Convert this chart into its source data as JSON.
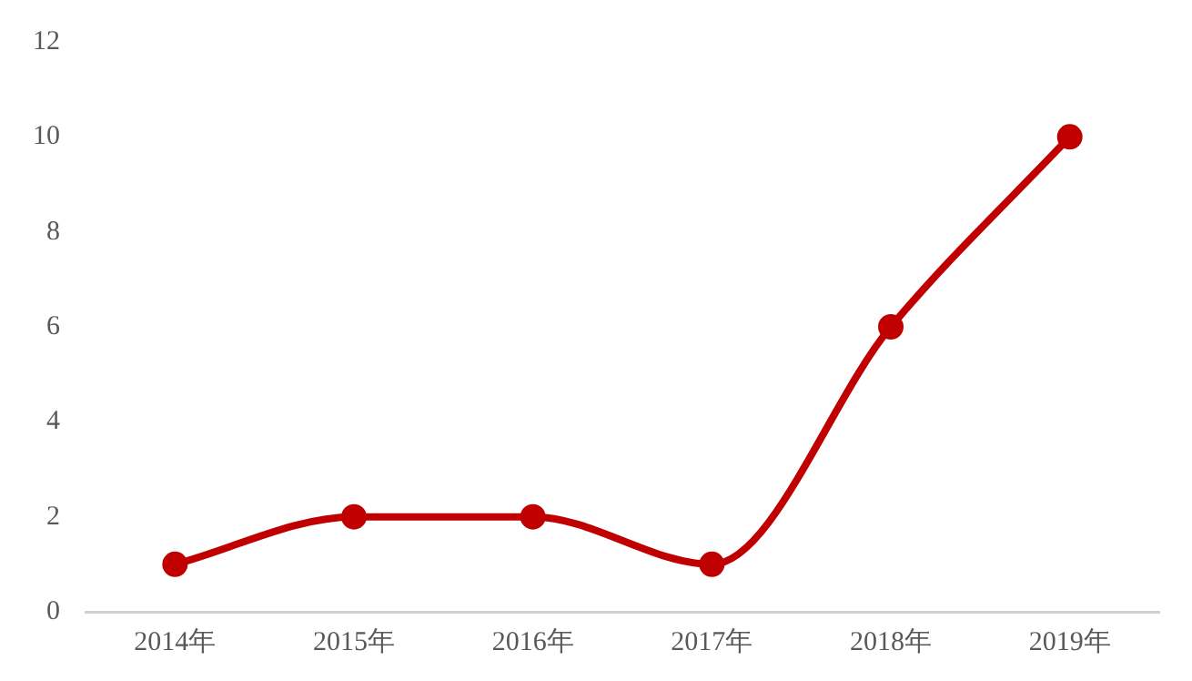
{
  "chart_data": {
    "type": "line",
    "categories": [
      "2014年",
      "2015年",
      "2016年",
      "2017年",
      "2018年",
      "2019年"
    ],
    "series": [
      {
        "color": "#c00000",
        "values": [
          1,
          2,
          2,
          1,
          6,
          10
        ]
      }
    ],
    "ylim": [
      0,
      12
    ],
    "yticks": [
      0,
      2,
      4,
      6,
      8,
      10,
      12
    ],
    "grid": false,
    "legend": false,
    "marker": "circle",
    "line_style": "solid"
  }
}
